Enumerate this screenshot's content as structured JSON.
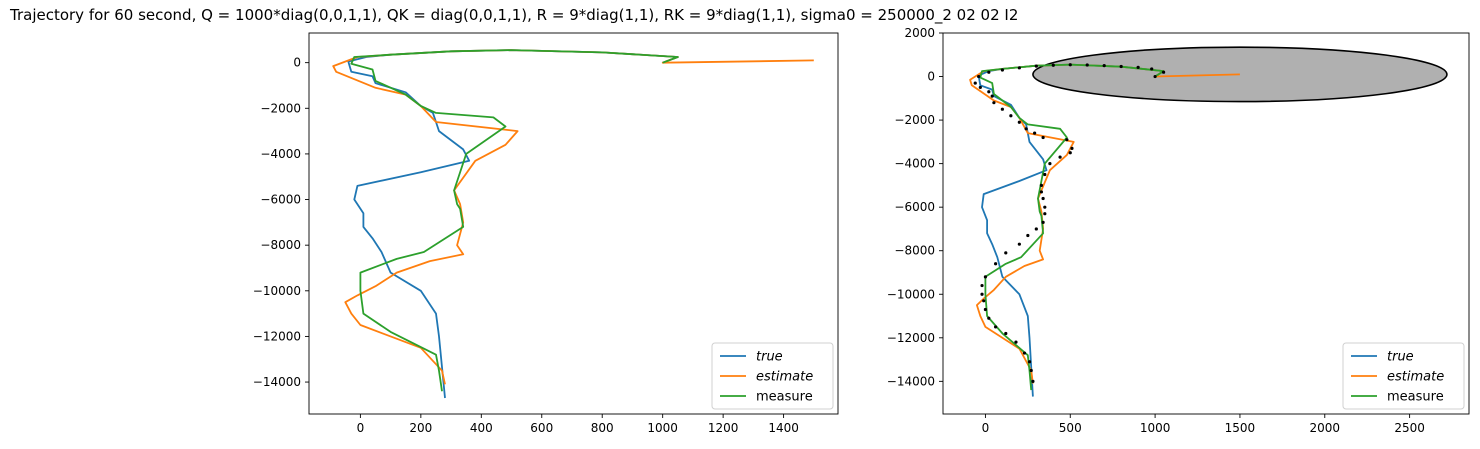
{
  "title": "Trajectory for 60 second, Q = 1000*diag(0,0,1,1), QK = diag(0,0,1,1), R = 9*diag(1,1), RK = 9*diag(1,1), sigma0 = 250000_2 02 02 I2",
  "colors": {
    "true": "#1f77b4",
    "estimate": "#ff7f0e",
    "measure": "#2ca02c",
    "ellipse_fill": "#b0b0b0",
    "ellipse_edge": "#000000",
    "points": "#000000"
  },
  "chart_data": [
    {
      "type": "line",
      "xlim": [
        -170,
        1580
      ],
      "ylim": [
        -15400,
        1300
      ],
      "xticks": [
        0,
        200,
        400,
        600,
        800,
        1000,
        1200,
        1400
      ],
      "xtick_labels": [
        "0",
        "200",
        "400",
        "600",
        "800",
        "1000",
        "1200",
        "1400"
      ],
      "yticks": [
        0,
        -2000,
        -4000,
        -6000,
        -8000,
        -10000,
        -12000,
        -14000
      ],
      "ytick_labels": [
        "0",
        "−2000",
        "−4000",
        "−6000",
        "−8000",
        "−10000",
        "−12000",
        "−14000"
      ],
      "grid": false,
      "legend": {
        "placement": "lower-right",
        "entries": [
          {
            "key": "true",
            "label": "true",
            "italic": true
          },
          {
            "key": "estimate",
            "label": "estimate",
            "italic": true
          },
          {
            "key": "measure",
            "label": "measure",
            "italic": false
          }
        ]
      },
      "series": [
        {
          "key": "true",
          "name": "true",
          "x": [
            1000,
            1050,
            800,
            500,
            300,
            100,
            20,
            -40,
            -30,
            40,
            50,
            150,
            200,
            240,
            250,
            260,
            340,
            360,
            200,
            -10,
            -20,
            10,
            10,
            40,
            70,
            100,
            200,
            250,
            260,
            280
          ],
          "y": [
            0,
            250,
            450,
            550,
            500,
            350,
            250,
            50,
            -400,
            -600,
            -900,
            -1300,
            -1900,
            -2200,
            -2600,
            -3000,
            -3800,
            -4300,
            -4800,
            -5400,
            -6000,
            -6600,
            -7200,
            -7700,
            -8300,
            -9200,
            -10000,
            -11000,
            -12000,
            -14700
          ]
        },
        {
          "key": "estimate",
          "name": "estimate",
          "x": [
            1500,
            1000,
            1050,
            800,
            500,
            300,
            100,
            -10,
            -90,
            -80,
            50,
            150,
            200,
            250,
            520,
            480,
            380,
            310,
            330,
            340,
            320,
            340,
            230,
            120,
            50,
            -10,
            -50,
            -30,
            0,
            200,
            270,
            280
          ],
          "y": [
            100,
            0,
            250,
            450,
            550,
            500,
            350,
            250,
            -150,
            -400,
            -1100,
            -1400,
            -1900,
            -2600,
            -3000,
            -3600,
            -4300,
            -5600,
            -6200,
            -7000,
            -8000,
            -8400,
            -8700,
            -9200,
            -9800,
            -10200,
            -10500,
            -11000,
            -11500,
            -12500,
            -13500,
            -14100
          ]
        },
        {
          "key": "measure",
          "name": "measure",
          "x": [
            1000,
            1050,
            800,
            500,
            300,
            100,
            -20,
            -30,
            40,
            50,
            150,
            200,
            250,
            440,
            480,
            350,
            310,
            320,
            330,
            340,
            210,
            120,
            0,
            0,
            10,
            100,
            250,
            260,
            270
          ],
          "y": [
            0,
            250,
            450,
            550,
            500,
            350,
            250,
            -50,
            -300,
            -800,
            -1400,
            -1900,
            -2200,
            -2400,
            -2800,
            -4000,
            -5600,
            -6200,
            -6400,
            -7200,
            -8300,
            -8600,
            -9200,
            -10000,
            -11000,
            -11800,
            -12800,
            -13500,
            -14400
          ]
        }
      ]
    },
    {
      "type": "line",
      "xlim": [
        -250,
        2850
      ],
      "ylim": [
        -15500,
        2000
      ],
      "xticks": [
        0,
        500,
        1000,
        1500,
        2000,
        2500
      ],
      "xtick_labels": [
        "0",
        "500",
        "1000",
        "1500",
        "2000",
        "2500"
      ],
      "yticks": [
        2000,
        0,
        -2000,
        -4000,
        -6000,
        -8000,
        -10000,
        -12000,
        -14000
      ],
      "ytick_labels": [
        "2000",
        "0",
        "−2000",
        "−4000",
        "−6000",
        "−8000",
        "−10000",
        "−12000",
        "−14000"
      ],
      "grid": false,
      "ellipse": {
        "cx": 1500,
        "cy": 100,
        "rx": 1220,
        "ry": 1250
      },
      "legend": {
        "placement": "lower-right",
        "entries": [
          {
            "key": "true",
            "label": "true",
            "italic": true
          },
          {
            "key": "estimate",
            "label": "estimate",
            "italic": true
          },
          {
            "key": "measure",
            "label": "measure",
            "italic": false
          }
        ]
      },
      "series": [
        {
          "key": "true",
          "name": "true",
          "x": [
            1000,
            1050,
            800,
            500,
            300,
            100,
            20,
            -40,
            -30,
            40,
            50,
            150,
            200,
            240,
            250,
            260,
            340,
            360,
            200,
            -10,
            -20,
            10,
            10,
            40,
            70,
            100,
            200,
            250,
            260,
            280
          ],
          "y": [
            0,
            250,
            450,
            550,
            500,
            350,
            250,
            50,
            -400,
            -600,
            -900,
            -1300,
            -1900,
            -2200,
            -2600,
            -3000,
            -3800,
            -4300,
            -4800,
            -5400,
            -6000,
            -6600,
            -7200,
            -7700,
            -8300,
            -9200,
            -10000,
            -11000,
            -12000,
            -14700
          ]
        },
        {
          "key": "estimate",
          "name": "estimate",
          "x": [
            1500,
            1000,
            1050,
            800,
            500,
            300,
            100,
            -10,
            -90,
            -80,
            50,
            150,
            200,
            250,
            520,
            480,
            380,
            310,
            330,
            340,
            320,
            340,
            230,
            120,
            50,
            -10,
            -50,
            -30,
            0,
            200,
            270,
            280
          ],
          "y": [
            100,
            0,
            250,
            450,
            550,
            500,
            350,
            250,
            -150,
            -400,
            -1100,
            -1400,
            -1900,
            -2600,
            -3000,
            -3600,
            -4300,
            -5600,
            -6200,
            -7000,
            -8000,
            -8400,
            -8700,
            -9200,
            -9800,
            -10200,
            -10500,
            -11000,
            -11500,
            -12500,
            -13500,
            -14100
          ]
        },
        {
          "key": "measure",
          "name": "measure",
          "x": [
            1000,
            1050,
            800,
            500,
            300,
            100,
            -20,
            -30,
            40,
            50,
            150,
            200,
            250,
            440,
            480,
            350,
            310,
            320,
            330,
            340,
            210,
            120,
            0,
            0,
            10,
            100,
            250,
            260,
            270
          ],
          "y": [
            0,
            250,
            450,
            550,
            500,
            350,
            250,
            -50,
            -300,
            -800,
            -1400,
            -1900,
            -2200,
            -2400,
            -2800,
            -4000,
            -5600,
            -6200,
            -6400,
            -7200,
            -8300,
            -8600,
            -9200,
            -10000,
            -11000,
            -11800,
            -12800,
            -13500,
            -14400
          ]
        }
      ],
      "points": {
        "x": [
          1000,
          1050,
          980,
          900,
          800,
          700,
          600,
          500,
          400,
          300,
          200,
          100,
          20,
          -40,
          -60,
          -30,
          20,
          40,
          50,
          100,
          150,
          200,
          240,
          290,
          340,
          480,
          510,
          500,
          440,
          380,
          350,
          330,
          330,
          340,
          350,
          350,
          340,
          300,
          250,
          200,
          120,
          60,
          0,
          -20,
          -20,
          -10,
          0,
          20,
          60,
          120,
          180,
          230,
          260,
          270,
          280
        ],
        "y": [
          0,
          200,
          350,
          420,
          460,
          500,
          530,
          540,
          520,
          480,
          400,
          300,
          200,
          0,
          -300,
          -500,
          -700,
          -900,
          -1200,
          -1500,
          -1800,
          -2100,
          -2400,
          -2600,
          -2800,
          -2900,
          -3300,
          -3500,
          -3700,
          -4000,
          -4500,
          -5000,
          -5300,
          -5600,
          -6000,
          -6300,
          -6700,
          -7000,
          -7300,
          -7700,
          -8100,
          -8600,
          -9200,
          -9600,
          -10000,
          -10300,
          -10700,
          -11100,
          -11500,
          -11800,
          -12200,
          -12700,
          -13100,
          -13500,
          -14000
        ]
      }
    }
  ]
}
